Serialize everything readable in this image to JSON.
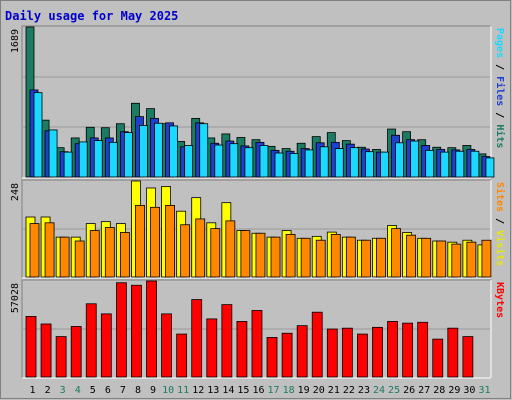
{
  "chart_data": {
    "type": "bar",
    "title": "Daily usage for May 2025",
    "categories": [
      "1",
      "2",
      "3",
      "4",
      "5",
      "6",
      "7",
      "8",
      "9",
      "10",
      "11",
      "12",
      "13",
      "14",
      "15",
      "16",
      "17",
      "18",
      "19",
      "20",
      "21",
      "22",
      "23",
      "24",
      "25",
      "26",
      "27",
      "28",
      "29",
      "30",
      "31"
    ],
    "weekend_days": [
      "3",
      "4",
      "10",
      "11",
      "17",
      "18",
      "24",
      "25",
      "31"
    ],
    "panels": [
      {
        "id": "hits",
        "max_label": "1689",
        "ylim": [
          0,
          1689
        ],
        "series": [
          {
            "name": "Hits",
            "color": "#1b7b63",
            "values": [
              1689,
              640,
              330,
              440,
              560,
              555,
              600,
              830,
              770,
              600,
              400,
              660,
              440,
              485,
              445,
              420,
              345,
              320,
              380,
              455,
              500,
              410,
              335,
              310,
              540,
              510,
              420,
              335,
              330,
              355,
              260
            ]
          },
          {
            "name": "Pages",
            "color": "#1f3fd0",
            "values": [
              980,
              520,
              285,
              375,
              440,
              440,
              510,
              680,
              660,
              610,
              340,
              610,
              380,
              405,
              350,
              390,
              300,
              290,
              320,
              385,
              390,
              370,
              315,
              280,
              470,
              420,
              355,
              310,
              305,
              310,
              230
            ]
          },
          {
            "name": "Files",
            "color": "#1ad8ff",
            "values": [
              950,
              530,
              280,
              395,
              410,
              390,
              500,
              580,
              605,
              575,
              355,
              600,
              360,
              375,
              330,
              355,
              270,
              265,
              305,
              340,
              320,
              330,
              285,
              280,
              385,
              405,
              300,
              280,
              290,
              290,
              215
            ]
          }
        ]
      },
      {
        "id": "visits",
        "max_label": "248",
        "ylim": [
          0,
          248
        ],
        "series": [
          {
            "name": "Visits",
            "color": "#ffff00",
            "values": [
              155,
              155,
              103,
              103,
              138,
              143,
              138,
              248,
              230,
              234,
              170,
              205,
              140,
              192,
              120,
              113,
              103,
              120,
              100,
              105,
              116,
              103,
              95,
              100,
              133,
              115,
              100,
              93,
              90,
              95,
              83
            ]
          },
          {
            "name": "Sites",
            "color": "#ff8800",
            "values": [
              138,
              140,
              103,
              93,
              120,
              128,
              115,
              185,
              180,
              185,
              135,
              150,
              125,
              145,
              120,
              113,
              103,
              110,
              100,
              95,
              110,
              103,
              95,
              100,
              125,
              108,
              100,
              93,
              85,
              90,
              95
            ]
          }
        ]
      },
      {
        "id": "kbytes",
        "max_label": "57028",
        "ylim": [
          0,
          57028
        ],
        "series": [
          {
            "name": "KBytes",
            "color": "#ff0000",
            "values": [
              36000,
              31500,
              24000,
              30000,
              43500,
              37500,
              56000,
              54500,
              57028,
              37500,
              25500,
              46000,
              34500,
              43000,
              33000,
              39500,
              23500,
              26000,
              30500,
              38500,
              28500,
              29000,
              25500,
              29500,
              33000,
              32000,
              32500,
              22500,
              29000,
              24000,
              0
            ]
          }
        ]
      }
    ],
    "right_labels": [
      {
        "panel": "hits",
        "parts": [
          {
            "text": "Pages",
            "color": "#1ad8ff"
          },
          {
            "text": " / ",
            "color": "#000000"
          },
          {
            "text": "Files",
            "color": "#1f3fd0"
          },
          {
            "text": " / ",
            "color": "#000000"
          },
          {
            "text": "Hits",
            "color": "#1b7b63"
          }
        ]
      },
      {
        "panel": "visits",
        "parts": [
          {
            "text": "Sites",
            "color": "#ff8800"
          },
          {
            "text": " / ",
            "color": "#000000"
          },
          {
            "text": "Visits",
            "color": "#e8e800"
          }
        ]
      },
      {
        "panel": "kbytes",
        "parts": [
          {
            "text": "KBytes",
            "color": "#ff0000"
          }
        ]
      }
    ],
    "colors": {
      "background": "#c0c0c0",
      "frame_light": "#ffffff",
      "frame_dark": "#808080",
      "title": "#0000cc",
      "weekday_label": "#000000",
      "weekend_label": "#1b7b63",
      "grid": "#9a9a9a"
    },
    "grid": true
  }
}
